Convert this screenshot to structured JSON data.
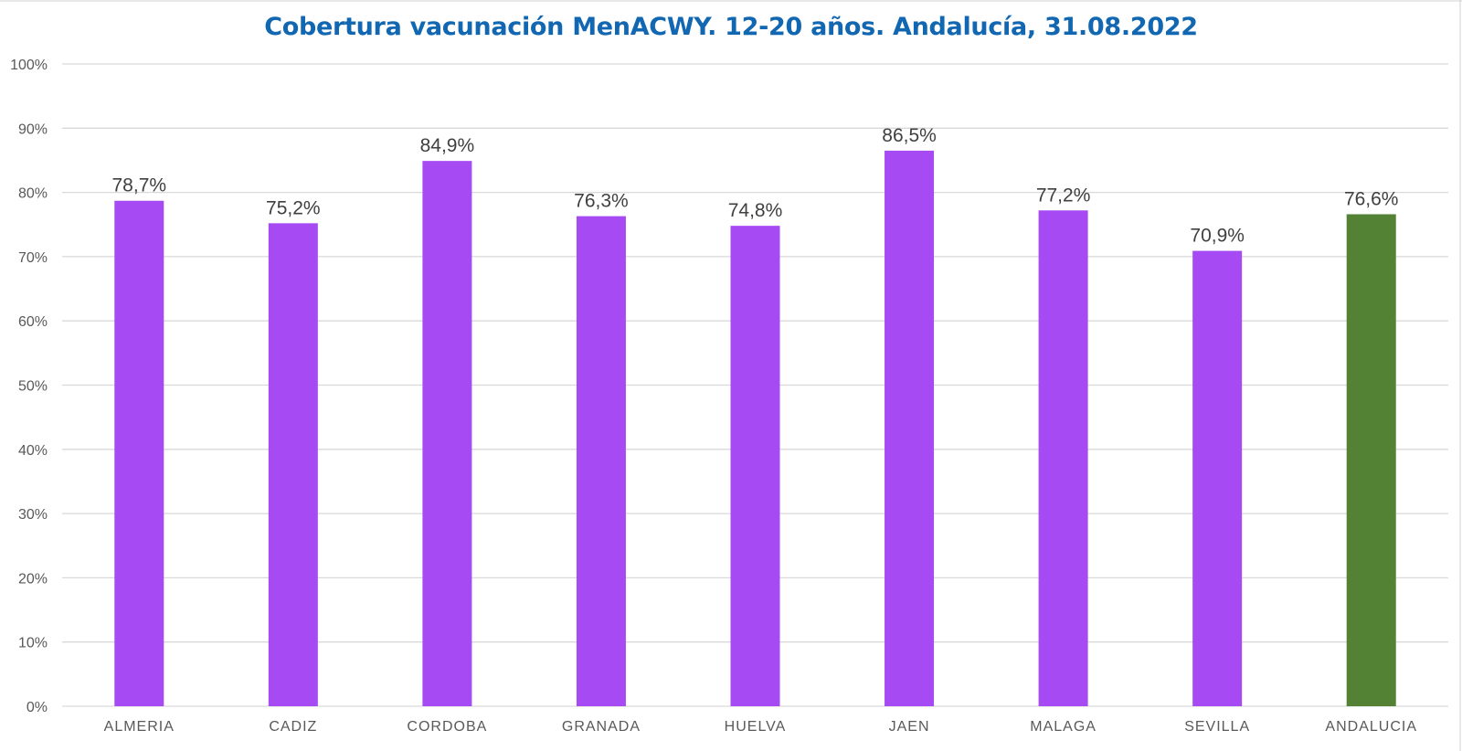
{
  "chart_data": {
    "type": "bar",
    "title": "Cobertura vacunación MenACWY. 12-20 años. Andalucía, 31.08.2022",
    "xlabel": "",
    "ylabel": "",
    "categories": [
      "ALMERIA",
      "CADIZ",
      "CORDOBA",
      "GRANADA",
      "HUELVA",
      "JAEN",
      "MALAGA",
      "SEVILLA",
      "ANDALUCIA"
    ],
    "values": [
      78.7,
      75.2,
      84.9,
      76.3,
      74.8,
      86.5,
      77.2,
      70.9,
      76.6
    ],
    "data_labels": [
      "78,7%",
      "75,2%",
      "84,9%",
      "76,3%",
      "74,8%",
      "86,5%",
      "77,2%",
      "70,9%",
      "76,6%"
    ],
    "ylim": [
      0,
      100
    ],
    "yticks": [
      "0%",
      "10%",
      "20%",
      "30%",
      "40%",
      "50%",
      "60%",
      "70%",
      "80%",
      "90%",
      "100%"
    ],
    "grid": true,
    "legend": "none",
    "colors": {
      "province": "#a64bf4",
      "total": "#548235",
      "title": "#1167b1",
      "grid": "#d9d9d9"
    }
  }
}
